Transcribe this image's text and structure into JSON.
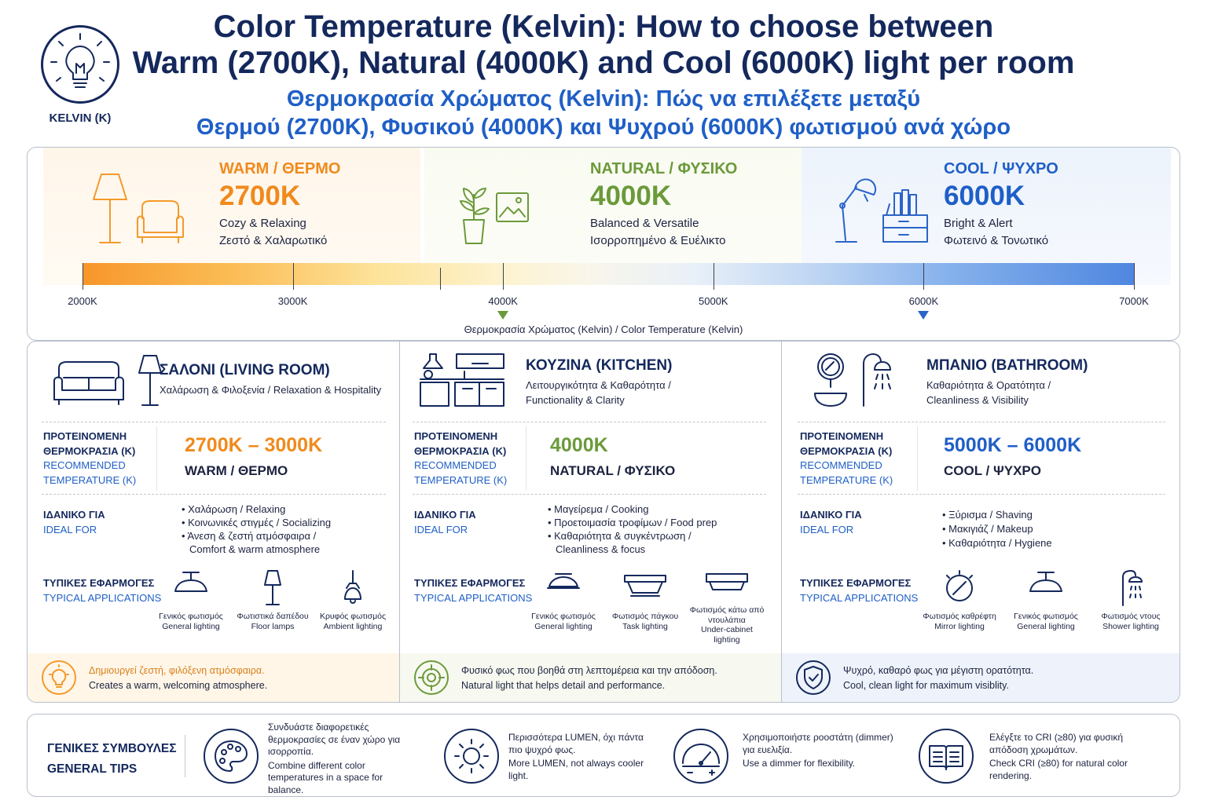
{
  "header": {
    "logo_label": "KELVIN (K)",
    "title_en_line1": "Color Temperature (Kelvin): How to choose between",
    "title_en_line2": "Warm (2700K), Natural (4000K) and Cool (6000K) light per room",
    "title_gr_line1": "Θερμοκρασία Χρώματος (Kelvin): Πώς να επιλέξετε μεταξύ",
    "title_gr_line2": "Θερμού (2700K), Φυσικού (4000K) και Ψυχρού (6000K) φωτισμού ανά χώρο"
  },
  "scale": {
    "zones": [
      {
        "heading": "WARM / ΘΕΡΜΟ",
        "kelvin": "2700K",
        "desc_en": "Cozy & Relaxing",
        "desc_gr": "Ζεστό & Χαλαρωτικό",
        "color": "#f08a1c",
        "icon": "floor-lamp-armchair-icon"
      },
      {
        "heading": "NATURAL / ΦΥΣΙΚΟ",
        "kelvin": "4000K",
        "desc_en": "Balanced & Versatile",
        "desc_gr": "Ισορροπημένο & Ευέλικτο",
        "color": "#6b9a3a",
        "icon": "plant-picture-icon"
      },
      {
        "heading": "COOL / ΨΥΧΡΟ",
        "kelvin": "6000K",
        "desc_en": "Bright & Alert",
        "desc_gr": "Φωτεινό & Τονωτικό",
        "color": "#1f5fc7",
        "icon": "desk-lamp-shelf-icon"
      }
    ],
    "tick_labels": [
      "2000K",
      "3000K",
      "4000K",
      "5000K",
      "6000K",
      "7000K"
    ],
    "range": [
      2000,
      7000
    ],
    "markers": [
      {
        "kelvin": 4000,
        "color": "#6b9a3a"
      },
      {
        "kelvin": 6000,
        "color": "#2a64c8"
      }
    ],
    "axis_caption": "Θερμοκρασία Χρώματος (Kelvin) / Color Temperature (Kelvin)"
  },
  "rooms": [
    {
      "title": "ΣΑΛΟΝΙ (LIVING ROOM)",
      "subtitle_line1": "Χαλάρωση & Φιλοξενία / Relaxation & Hospitality",
      "subtitle_line2": "",
      "rec_label_gr_1": "ΠΡΟΤΕΙΝΟΜΕΝΗ",
      "rec_label_gr_2": "ΘΕΡΜΟΚΡΑΣΙΑ (K)",
      "rec_label_en_1": "RECOMMENDED",
      "rec_label_en_2": "TEMPERATURE (K)",
      "kelvin": "2700K – 3000K",
      "kelvin_desc": "WARM / ΘΕΡΜΟ",
      "ideal_gr": "ΙΔΑΝΙΚΟ ΓΙΑ",
      "ideal_en": "IDEAL FOR",
      "ideal_items": [
        "Χαλάρωση / Relaxing",
        "Κοινωνικές στιγμές / Socializing",
        "Άνεση & ζεστή ατμόσφαιρα /"
      ],
      "ideal_cont": "Comfort & warm atmosphere",
      "apps_gr": "ΤΥΠΙΚΕΣ ΕΦΑΡΜΟΓΕΣ",
      "apps_en": "TYPICAL APPLICATIONS",
      "apps": [
        {
          "gr": "Γενικός φωτισμός",
          "en": "General lighting"
        },
        {
          "gr": "Φωτιστικά δαπέδου",
          "en": "Floor lamps"
        },
        {
          "gr": "Κρυφός φωτισμός",
          "en": "Ambient lighting"
        }
      ],
      "footer_gr": "Δημιουργεί ζεστή, φιλόξενη ατμόσφαιρα.",
      "footer_en": "Creates a warm, welcoming atmosphere.",
      "kelvin_color": "#f08a1c",
      "footer_bg": "#fff6e8",
      "footer_gr_color": "#d9801a"
    },
    {
      "title": "ΚΟΥΖΙΝΑ (KITCHEN)",
      "subtitle_line1": "Λειτουργικότητα & Καθαρότητα /",
      "subtitle_line2": "Functionality & Clarity",
      "rec_label_gr_1": "ΠΡΟΤΕΙΝΟΜΕΝΗ",
      "rec_label_gr_2": "ΘΕΡΜΟΚΡΑΣΙΑ (K)",
      "rec_label_en_1": "RECOMMENDED",
      "rec_label_en_2": "TEMPERATURE (K)",
      "kelvin": "4000K",
      "kelvin_desc": "NATURAL / ΦΥΣΙΚΟ",
      "ideal_gr": "ΙΔΑΝΙΚΟ ΓΙΑ",
      "ideal_en": "IDEAL FOR",
      "ideal_items": [
        "Μαγείρεμα / Cooking",
        "Προετοιμασία τροφίμων / Food prep",
        "Καθαριότητα & συγκέντρωση /"
      ],
      "ideal_cont": "Cleanliness & focus",
      "apps_gr": "ΤΥΠΙΚΕΣ ΕΦΑΡΜΟΓΕΣ",
      "apps_en": "TYPICAL APPLICATIONS",
      "apps": [
        {
          "gr": "Γενικός φωτισμός",
          "en": "General lighting"
        },
        {
          "gr": "Φωτισμός πάγκου",
          "en": "Task lighting"
        },
        {
          "gr": "Φωτισμός κάτω από ντουλάπια",
          "en": "Under-cabinet lighting"
        }
      ],
      "footer_gr": "Φυσικό φως που βοηθά στη λεπτομέρεια και την απόδοση.",
      "footer_en": "Natural light that helps detail and performance.",
      "kelvin_color": "#6b9a3a",
      "footer_bg": "#f7f9f0",
      "footer_gr_color": "#1c2340"
    },
    {
      "title": "ΜΠΑΝΙΟ (BATHROOM)",
      "subtitle_line1": "Καθαριότητα & Ορατότητα /",
      "subtitle_line2": "Cleanliness & Visibility",
      "rec_label_gr_1": "ΠΡΟΤΕΙΝΟΜΕΝΗ",
      "rec_label_gr_2": "ΘΕΡΜΟΚΡΑΣΙΑ (K)",
      "rec_label_en_1": "RECOMMENDED",
      "rec_label_en_2": "TEMPERATURE (K)",
      "kelvin": "5000K – 6000K",
      "kelvin_desc": "COOL / ΨΥΧΡΟ",
      "ideal_gr": "ΙΔΑΝΙΚΟ ΓΙΑ",
      "ideal_en": "IDEAL FOR",
      "ideal_items": [
        "Ξύρισμα / Shaving",
        "Μακιγιάζ / Makeup",
        "Καθαριότητα / Hygiene"
      ],
      "ideal_cont": "",
      "apps_gr": "ΤΥΠΙΚΕΣ ΕΦΑΡΜΟΓΕΣ",
      "apps_en": "TYPICAL APPLICATIONS",
      "apps": [
        {
          "gr": "Φωτισμός καθρέφτη",
          "en": "Mirror lighting"
        },
        {
          "gr": "Γενικός φωτισμός",
          "en": "General lighting"
        },
        {
          "gr": "Φωτισμός ντους",
          "en": "Shower lighting"
        }
      ],
      "footer_gr": "Ψυχρό, καθαρό φως για μέγιστη ορατότητα.",
      "footer_en": "Cool, clean light for maximum visiblity.",
      "kelvin_color": "#1f5fc7",
      "footer_bg": "#eef3fb",
      "footer_gr_color": "#1c2340"
    }
  ],
  "tips": {
    "title_gr": "ΓΕΝΙΚΕΣ ΣΥΜΒΟΥΛΕΣ",
    "title_en": "GENERAL TIPS",
    "items": [
      {
        "icon": "palette-icon",
        "gr": "Συνδυάστε διαφορετικές θερμοκρασίες σε έναν χώρο για ισορροπία.",
        "en": "Combine different color temperatures in a space for balance."
      },
      {
        "icon": "sun-icon",
        "gr": "Περισσότερα LUMEN, όχι πάντα πιο ψυχρό φως.",
        "en": "More LUMEN, not always cooler light."
      },
      {
        "icon": "dimmer-gauge-icon",
        "gr": "Χρησιμοποιήστε ροοστάτη (dimmer) για ευελιξία.",
        "en": "Use a dimmer for flexibility."
      },
      {
        "icon": "book-icon",
        "gr": "Ελέγξτε το CRI (≥80) για φυσική απόδοση χρωμάτων.",
        "en": "Check CRI (≥80) for natural color rendering."
      }
    ]
  }
}
